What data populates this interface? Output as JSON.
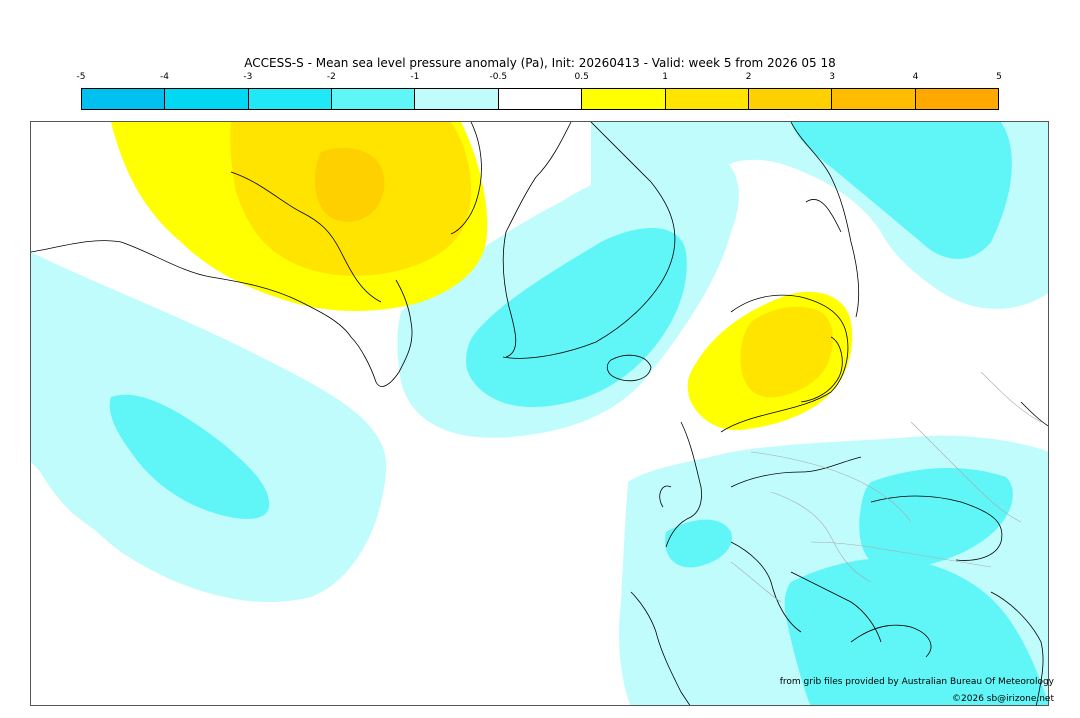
{
  "title": "ACCESS-S - Mean sea level pressure anomaly (Pa), Init: 20260413 - Valid: week 5 from 2026 05 18",
  "legend": {
    "ticks": [
      "-5",
      "-4",
      "-3",
      "-2",
      "-1",
      "-0.5",
      "0.5",
      "1",
      "2",
      "3",
      "4",
      "5"
    ],
    "colors": [
      "#00c0f0",
      "#00d8f4",
      "#20e8f6",
      "#60f6f8",
      "#c0fcfc",
      "#ffffff",
      "#ffff00",
      "#ffe400",
      "#ffd000",
      "#ffbc00",
      "#ffa800"
    ]
  },
  "credits": {
    "source": "from grib files provided by Australian Bureau Of Meteorology",
    "copyright": "©2026 sb@irizone.net"
  }
}
